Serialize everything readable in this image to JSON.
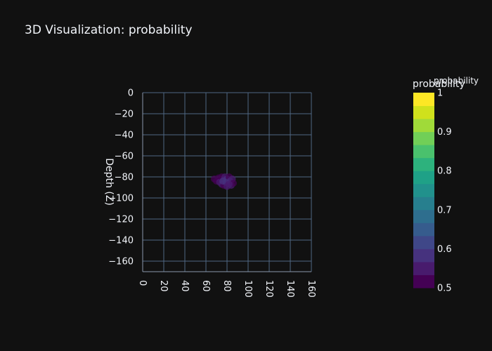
{
  "chart_data": {
    "type": "scatter",
    "title": "3D Visualization: probability",
    "xlabel": "",
    "ylabel": "Depth (Z)",
    "xlim": [
      0,
      160
    ],
    "ylim": [
      -170,
      0
    ],
    "x_ticks": [
      "0",
      "20",
      "40",
      "60",
      "80",
      "100",
      "120",
      "140",
      "160"
    ],
    "y_ticks": [
      "0",
      "−20",
      "−40",
      "−60",
      "−80",
      "−100",
      "−120",
      "−140",
      "−160"
    ],
    "grid": true,
    "colorbar": {
      "title": "probability",
      "overlay_title": "probability",
      "range": [
        0.5,
        1
      ],
      "ticks": [
        "1",
        "0.9",
        "0.8",
        "0.7",
        "0.6",
        "0.5"
      ],
      "colors": [
        "#440154",
        "#481b6d",
        "#46327e",
        "#3f4788",
        "#365c8d",
        "#2e6e8e",
        "#277f8e",
        "#21918c",
        "#1fa187",
        "#2db27d",
        "#4ac16d",
        "#71cf57",
        "#a0da39",
        "#d0e11c",
        "#fde725"
      ]
    },
    "points": [
      {
        "x": 68,
        "y": -82,
        "v": 0.52
      },
      {
        "x": 70,
        "y": -84,
        "v": 0.53
      },
      {
        "x": 72,
        "y": -81,
        "v": 0.51
      },
      {
        "x": 73,
        "y": -85,
        "v": 0.55
      },
      {
        "x": 75,
        "y": -80,
        "v": 0.52
      },
      {
        "x": 75,
        "y": -87,
        "v": 0.54
      },
      {
        "x": 77,
        "y": -83,
        "v": 0.56
      },
      {
        "x": 77,
        "y": -88,
        "v": 0.53
      },
      {
        "x": 78,
        "y": -80,
        "v": 0.55
      },
      {
        "x": 79,
        "y": -85,
        "v": 0.57
      },
      {
        "x": 80,
        "y": -82,
        "v": 0.58
      },
      {
        "x": 80,
        "y": -89,
        "v": 0.54
      },
      {
        "x": 81,
        "y": -86,
        "v": 0.56
      },
      {
        "x": 82,
        "y": -80,
        "v": 0.53
      },
      {
        "x": 83,
        "y": -84,
        "v": 0.57
      },
      {
        "x": 84,
        "y": -88,
        "v": 0.55
      },
      {
        "x": 85,
        "y": -82,
        "v": 0.54
      },
      {
        "x": 86,
        "y": -86,
        "v": 0.52
      },
      {
        "x": 76,
        "y": -84,
        "v": 0.58
      },
      {
        "x": 82,
        "y": -87,
        "v": 0.56
      }
    ]
  }
}
